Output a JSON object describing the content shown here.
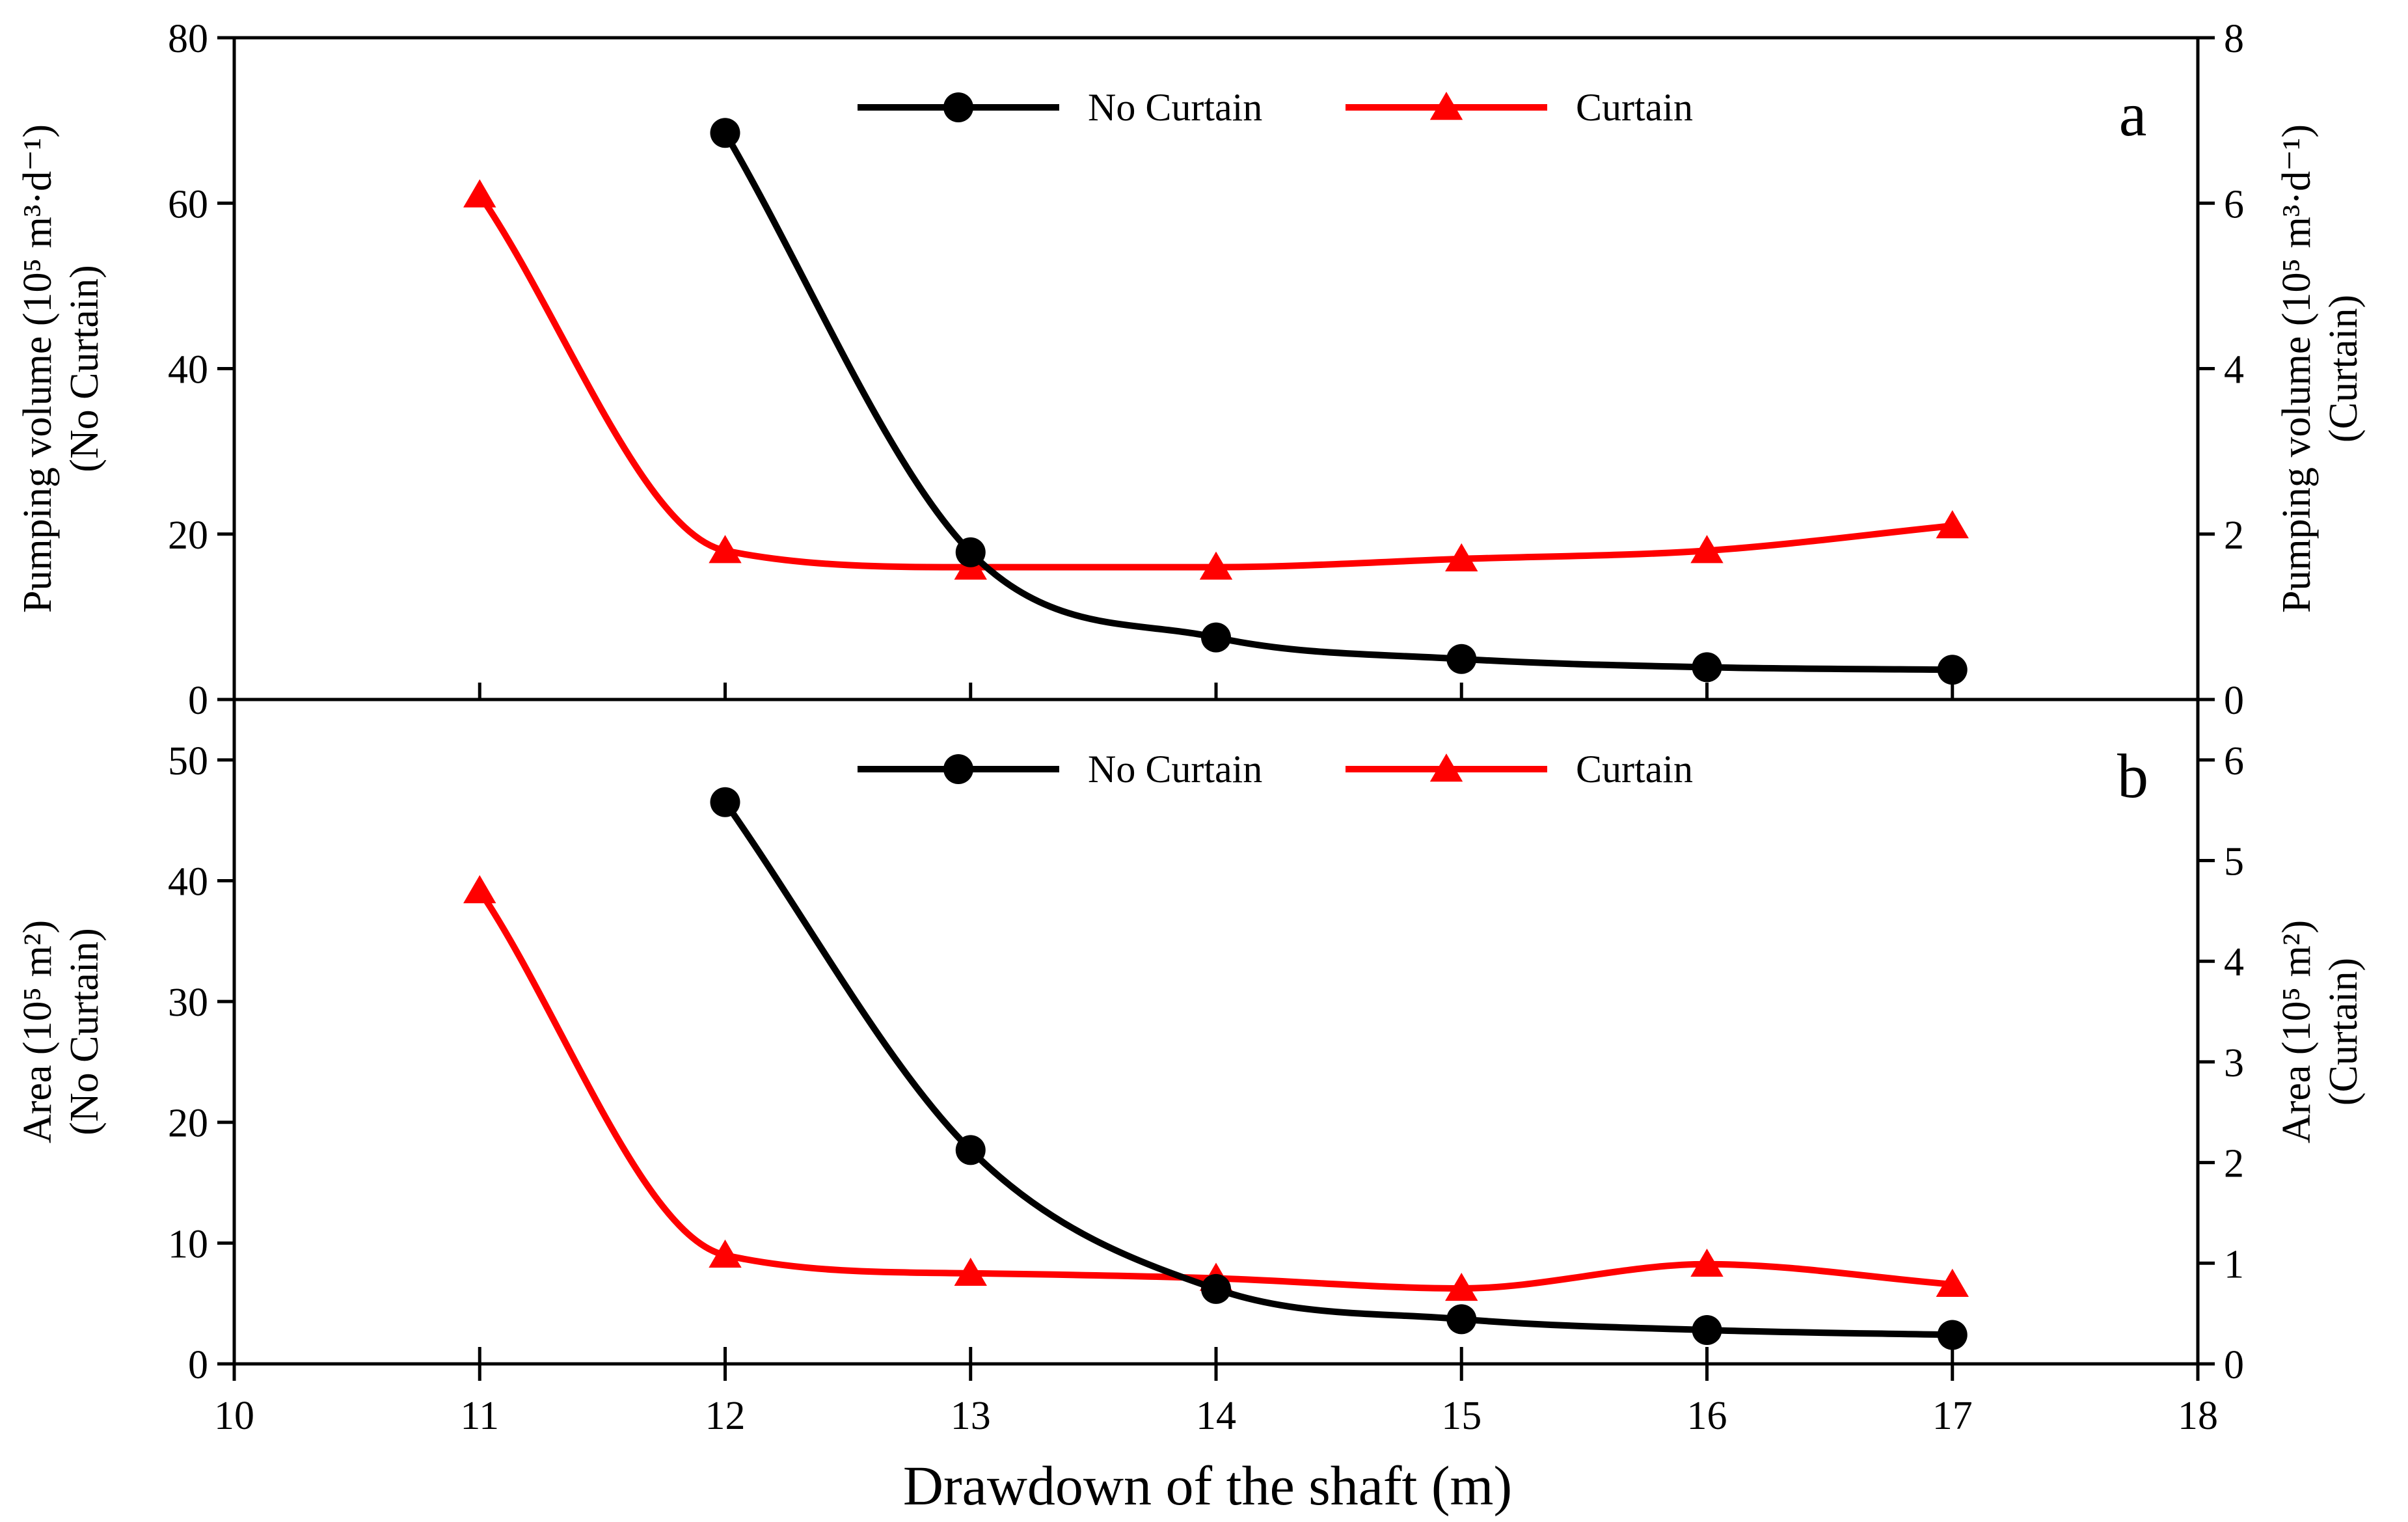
{
  "figure": {
    "xlabel": "Drawdown of the shaft (m)",
    "x_ticks": [
      "10",
      "11",
      "12",
      "13",
      "14",
      "15",
      "16",
      "17",
      "18"
    ]
  },
  "colors": {
    "no_curtain": "#000000",
    "curtain": "#ff0000",
    "axis": "#000000"
  },
  "chart_data": [
    {
      "type": "line",
      "panel": "a",
      "title": "",
      "xlabel": "Drawdown of the shaft (m)",
      "xlim": [
        10,
        18
      ],
      "x_ticks": [
        10,
        11,
        12,
        13,
        14,
        15,
        16,
        17,
        18
      ],
      "ylabel_left_lines": [
        "Pumping volume (10⁵ m³·d⁻¹)",
        "(No Curtain)"
      ],
      "ylabel_right_lines": [
        "Pumping volume (10⁵ m³·d⁻¹)",
        "(Curtain)"
      ],
      "ylim_left": [
        0,
        80
      ],
      "ylim_right": [
        0,
        8
      ],
      "yticks_left": [
        "0",
        "20",
        "40",
        "60",
        "80"
      ],
      "yticks_right": [
        "0",
        "2",
        "4",
        "6",
        "8"
      ],
      "legend": [
        "No Curtain",
        "Curtain"
      ],
      "legend_position": "top-center",
      "series": [
        {
          "name": "No Curtain",
          "axis": "left",
          "color": "#000000",
          "marker": "circle",
          "x": [
            12,
            13,
            14,
            15,
            16,
            17
          ],
          "values": [
            68.5,
            17.8,
            7.5,
            4.9,
            3.9,
            3.6
          ]
        },
        {
          "name": "Curtain",
          "axis": "right",
          "color": "#ff0000",
          "marker": "triangle",
          "x": [
            11,
            12,
            13,
            14,
            15,
            16,
            17
          ],
          "values": [
            6.1,
            1.8,
            1.6,
            1.6,
            1.7,
            1.8,
            2.1
          ]
        }
      ]
    },
    {
      "type": "line",
      "panel": "b",
      "title": "",
      "xlabel": "Drawdown of the shaft (m)",
      "xlim": [
        10,
        18
      ],
      "x_ticks": [
        10,
        11,
        12,
        13,
        14,
        15,
        16,
        17,
        18
      ],
      "ylabel_left_lines": [
        "Area (10⁵ m²)",
        "(No Curtain)"
      ],
      "ylabel_right_lines": [
        "Area (10⁵ m²)",
        "(Curtain)"
      ],
      "ylim_left": [
        0,
        55
      ],
      "ylim_right": [
        0,
        6.6
      ],
      "yticks_left": [
        "0",
        "10",
        "20",
        "30",
        "40",
        "50"
      ],
      "yticks_right": [
        "0",
        "1",
        "2",
        "3",
        "4",
        "5",
        "6"
      ],
      "legend": [
        "No Curtain",
        "Curtain"
      ],
      "legend_position": "top-center",
      "series": [
        {
          "name": "No Curtain",
          "axis": "left",
          "color": "#000000",
          "marker": "circle",
          "x": [
            12,
            13,
            14,
            15,
            16,
            17
          ],
          "values": [
            46.5,
            17.7,
            6.2,
            3.7,
            2.8,
            2.4
          ]
        },
        {
          "name": "Curtain",
          "axis": "right",
          "color": "#ff0000",
          "marker": "triangle",
          "x": [
            11,
            12,
            13,
            14,
            15,
            16,
            17
          ],
          "values": [
            4.7,
            1.08,
            0.9,
            0.85,
            0.75,
            0.99,
            0.79
          ]
        }
      ]
    }
  ]
}
